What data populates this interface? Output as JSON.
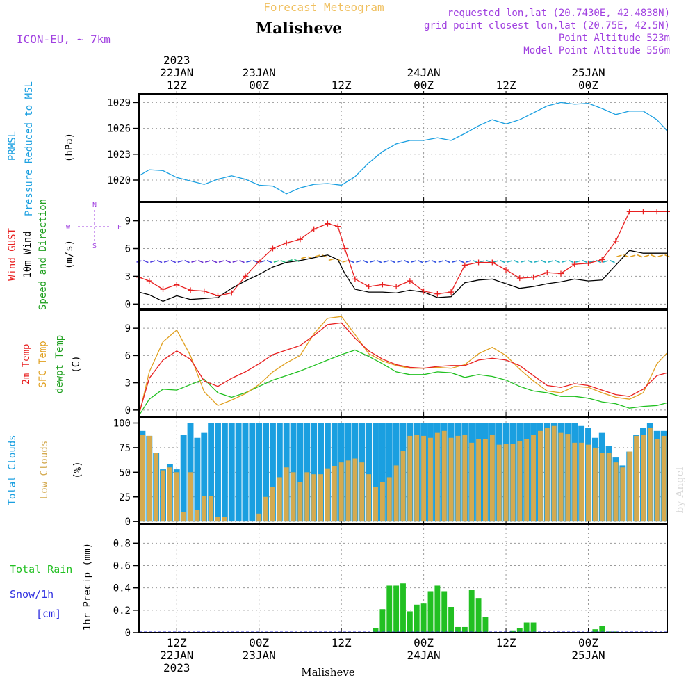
{
  "header": {
    "product_title": "Forecast Meteogram",
    "station_name": "Malisheve",
    "model_label": "ICON-EU, ~ 7km",
    "requested_lonlat": "requested lon,lat (20.7430E, 42.4838N)",
    "grid_point": "grid point closest lon,lat (20.75E, 42.5N)",
    "point_altitude": "Point Altitude 523m",
    "model_point_altitude": "Model Point Altitude 556m",
    "credit": "by Angel"
  },
  "colors": {
    "pressure": "#1a9fe0",
    "gust": "#e82020",
    "wind": "#000000",
    "temp": "#e82020",
    "sfc_temp": "#e0a020",
    "dewpt": "#20c020",
    "total_clouds": "#1a9fe0",
    "low_clouds": "#d4aa50",
    "rain": "#22c022",
    "snow": "#3030e0",
    "purple": "#a040e0",
    "header_orange": "#f0c060"
  },
  "time_axis": {
    "top_labels": [
      {
        "t": 12,
        "line1": "2023",
        "line2": "22JAN",
        "line3": "12Z"
      },
      {
        "t": 24,
        "line2": "23JAN",
        "line3": "00Z"
      },
      {
        "t": 36,
        "line3": "12Z"
      },
      {
        "t": 48,
        "line2": "24JAN",
        "line3": "00Z"
      },
      {
        "t": 60,
        "line3": "12Z"
      },
      {
        "t": 72,
        "line2": "25JAN",
        "line3": "00Z"
      }
    ],
    "bottom_labels": [
      {
        "t": 12,
        "line1": "12Z",
        "line2": "22JAN",
        "line3": "2023"
      },
      {
        "t": 24,
        "line1": "00Z",
        "line2": "23JAN"
      },
      {
        "t": 36,
        "line1": "12Z"
      },
      {
        "t": 48,
        "line1": "00Z",
        "line2": "24JAN"
      },
      {
        "t": 60,
        "line1": "12Z"
      },
      {
        "t": 72,
        "line1": "00Z",
        "line2": "25JAN"
      }
    ],
    "range_hours_from_22JAN_00Z": [
      6.5,
      83.5
    ]
  },
  "chart_data": [
    {
      "type": "line",
      "panel": "pressure",
      "ylabel_lines": [
        "PRMSL",
        "Pressure Reduced to MSL",
        "(hPa)"
      ],
      "ylim": [
        1017.5,
        1030
      ],
      "yticks": [
        1020,
        1023,
        1026,
        1029
      ],
      "x": [
        6.5,
        8,
        10,
        12,
        14,
        16,
        18,
        20,
        22,
        24,
        26,
        28,
        30,
        32,
        34,
        36,
        38,
        40,
        42,
        44,
        46,
        48,
        50,
        52,
        54,
        56,
        58,
        60,
        62,
        64,
        66,
        68,
        70,
        72,
        74,
        76,
        78,
        80,
        82,
        83.5
      ],
      "series": [
        {
          "values": [
            1020.5,
            1021.2,
            1021.1,
            1020.3,
            1019.9,
            1019.5,
            1020.1,
            1020.5,
            1020.1,
            1019.4,
            1019.3,
            1018.4,
            1019.1,
            1019.5,
            1019.6,
            1019.4,
            1020.4,
            1022.0,
            1023.3,
            1024.2,
            1024.6,
            1024.6,
            1024.9,
            1024.6,
            1025.4,
            1026.3,
            1027.0,
            1026.5,
            1027.0,
            1027.8,
            1028.6,
            1029.0,
            1028.8,
            1028.9,
            1028.3,
            1027.6,
            1028.0,
            1028.0,
            1027.0,
            1025.7
          ]
        }
      ]
    },
    {
      "type": "line",
      "panel": "wind",
      "ylabel_lines": [
        "Wind GUST",
        "10m Wind",
        "Speed and Direction",
        "(m/s)"
      ],
      "compass": {
        "n": "N",
        "s": "S",
        "w": "W",
        "e": "E"
      },
      "ylim": [
        -0.5,
        11
      ],
      "yticks": [
        0,
        3,
        6,
        9
      ],
      "x": [
        6.5,
        8,
        10,
        12,
        14,
        16,
        18,
        20,
        22,
        24,
        26,
        28,
        30,
        32,
        34,
        35.5,
        36.5,
        38,
        40,
        42,
        44,
        46,
        48,
        50,
        52,
        54,
        56,
        58,
        60,
        62,
        64,
        66,
        68,
        70,
        72,
        74,
        76,
        78,
        80,
        82,
        83.5
      ],
      "series": [
        {
          "name": "Wind GUST",
          "values": [
            2.9,
            2.5,
            1.6,
            2.1,
            1.5,
            1.4,
            0.9,
            1.2,
            3.0,
            4.6,
            6.0,
            6.6,
            7.0,
            8.1,
            8.7,
            8.4,
            6.0,
            2.7,
            1.9,
            2.1,
            1.9,
            2.5,
            1.4,
            1.1,
            1.3,
            4.2,
            4.5,
            4.5,
            3.7,
            2.8,
            2.9,
            3.4,
            3.3,
            4.3,
            4.4,
            4.8,
            6.8,
            10.0,
            10.0,
            10.0,
            10.0
          ]
        },
        {
          "name": "10m Wind",
          "values": [
            1.3,
            1.0,
            0.3,
            0.9,
            0.5,
            0.6,
            0.7,
            1.7,
            2.5,
            3.2,
            4.0,
            4.5,
            4.7,
            5.0,
            5.3,
            4.8,
            3.3,
            1.6,
            1.3,
            1.3,
            1.2,
            1.5,
            1.3,
            0.7,
            0.8,
            2.3,
            2.6,
            2.7,
            2.2,
            1.7,
            1.9,
            2.2,
            2.4,
            2.7,
            2.5,
            2.6,
            4.2,
            5.8,
            5.5,
            5.5,
            5.5
          ]
        }
      ]
    },
    {
      "type": "line",
      "panel": "temperature",
      "ylabel_lines": [
        "2m Temp",
        "SFC Temp",
        "dewpt Temp",
        "(C)"
      ],
      "ylim": [
        -0.7,
        11
      ],
      "yticks": [
        0,
        3,
        6,
        9
      ],
      "x": [
        6.5,
        8,
        10,
        12,
        14,
        16,
        18,
        20,
        22,
        24,
        26,
        28,
        30,
        32,
        34,
        36,
        38,
        40,
        42,
        44,
        46,
        48,
        50,
        52,
        54,
        56,
        58,
        60,
        62,
        64,
        66,
        68,
        70,
        72,
        74,
        76,
        78,
        80,
        82,
        83.5
      ],
      "series": [
        {
          "name": "2m Temp",
          "values": [
            -0.4,
            3.5,
            5.5,
            6.5,
            5.6,
            3.2,
            2.6,
            3.5,
            4.2,
            5.1,
            6.1,
            6.6,
            7.1,
            8.2,
            9.4,
            9.6,
            7.9,
            6.5,
            5.6,
            5.0,
            4.7,
            4.6,
            4.8,
            4.9,
            4.9,
            5.5,
            5.7,
            5.5,
            4.9,
            3.8,
            2.7,
            2.5,
            2.9,
            2.7,
            2.2,
            1.7,
            1.5,
            2.3,
            3.8,
            4.1
          ]
        },
        {
          "name": "SFC Temp",
          "values": [
            -0.6,
            4.2,
            7.5,
            8.8,
            6.0,
            2.0,
            0.5,
            1.1,
            1.8,
            2.8,
            4.2,
            5.2,
            6.0,
            8.4,
            10.1,
            10.3,
            8.3,
            6.2,
            5.4,
            4.9,
            4.6,
            4.6,
            4.7,
            4.6,
            5.0,
            6.2,
            6.9,
            6.0,
            4.5,
            3.2,
            2.1,
            1.9,
            2.6,
            2.5,
            1.9,
            1.4,
            1.2,
            1.9,
            5.1,
            6.3
          ]
        },
        {
          "name": "dewpt Temp",
          "values": [
            -0.6,
            1.2,
            2.3,
            2.2,
            2.8,
            3.4,
            1.9,
            1.4,
            1.9,
            2.6,
            3.3,
            3.8,
            4.3,
            4.9,
            5.5,
            6.1,
            6.6,
            5.9,
            5.1,
            4.2,
            3.9,
            3.9,
            4.2,
            4.1,
            3.6,
            3.9,
            3.7,
            3.3,
            2.6,
            2.1,
            1.9,
            1.5,
            1.5,
            1.3,
            0.9,
            0.7,
            0.2,
            0.4,
            0.5,
            0.8
          ]
        }
      ]
    },
    {
      "type": "bar",
      "panel": "clouds",
      "ylabel_lines": [
        "Total Clouds",
        "Low Clouds",
        "(%)"
      ],
      "ylim": [
        -2,
        106
      ],
      "yticks": [
        0,
        25,
        50,
        75,
        100
      ],
      "x_start_hour": 7,
      "x_step_hours": 1,
      "series": [
        {
          "name": "Total Clouds",
          "values": [
            92,
            87,
            70,
            53,
            58,
            53,
            88,
            100,
            85,
            90,
            100,
            100,
            100,
            100,
            100,
            100,
            100,
            100,
            100,
            100,
            100,
            100,
            100,
            100,
            100,
            100,
            100,
            100,
            100,
            100,
            100,
            100,
            100,
            100,
            100,
            100,
            100,
            100,
            100,
            100,
            100,
            100,
            100,
            100,
            100,
            100,
            100,
            100,
            100,
            100,
            100,
            100,
            100,
            100,
            100,
            100,
            100,
            100,
            100,
            100,
            100,
            100,
            100,
            100,
            97,
            95,
            85,
            90,
            77,
            65,
            57,
            71,
            88,
            95,
            100,
            92,
            92,
            86,
            85,
            75,
            73,
            68,
            70,
            94,
            95,
            75
          ]
        },
        {
          "name": "Low Clouds",
          "values": [
            88,
            87,
            70,
            52,
            55,
            50,
            10,
            50,
            12,
            26,
            26,
            5,
            5,
            0,
            0,
            0,
            0,
            8,
            25,
            35,
            45,
            55,
            50,
            40,
            50,
            48,
            48,
            54,
            56,
            60,
            62,
            64,
            60,
            48,
            35,
            40,
            45,
            57,
            72,
            87,
            88,
            87,
            85,
            90,
            92,
            85,
            87,
            88,
            80,
            84,
            84,
            88,
            78,
            79,
            79,
            82,
            84,
            88,
            92,
            95,
            97,
            90,
            89,
            80,
            80,
            78,
            75,
            70,
            70,
            60,
            55,
            71,
            87,
            88,
            95,
            84,
            87,
            78,
            80,
            73,
            70,
            66,
            62,
            92,
            93,
            60
          ]
        }
      ]
    },
    {
      "type": "bar",
      "panel": "precipitation",
      "ylabel_lines": [
        "1hr Precip (mm)"
      ],
      "legend_lines": [
        "Total  Rain",
        "Snow/1h",
        "[cm]"
      ],
      "ylim": [
        0,
        0.97
      ],
      "yticks": [
        "0",
        "0.2",
        "0.4",
        "0.6",
        "0.8"
      ],
      "ytick_values": [
        0,
        0.2,
        0.4,
        0.6,
        0.8
      ],
      "x_start_hour": 7,
      "x_step_hours": 1,
      "series": [
        {
          "name": "Total Rain",
          "values": [
            0,
            0,
            0,
            0,
            0,
            0,
            0,
            0,
            0,
            0,
            0,
            0,
            0,
            0,
            0,
            0,
            0,
            0,
            0,
            0,
            0,
            0,
            0,
            0,
            0,
            0,
            0,
            0,
            0.005,
            0,
            0,
            0,
            0,
            0,
            0.04,
            0.21,
            0.42,
            0.42,
            0.44,
            0.19,
            0.25,
            0.26,
            0.37,
            0.42,
            0.37,
            0.23,
            0.05,
            0.05,
            0.38,
            0.31,
            0.14,
            0,
            0,
            0,
            0.02,
            0.04,
            0.09,
            0.09,
            0,
            0,
            0,
            0,
            0,
            0,
            0,
            0,
            0.03,
            0.06,
            0.01,
            0.01,
            0,
            0,
            0,
            0,
            0,
            0,
            0,
            0
          ]
        },
        {
          "name": "Snow/1h",
          "values": []
        }
      ]
    }
  ],
  "wind_barbs": {
    "count": 78,
    "start_hour": 6.5,
    "step_hours": 1
  },
  "footer": {
    "station_name": "Malisheve"
  }
}
